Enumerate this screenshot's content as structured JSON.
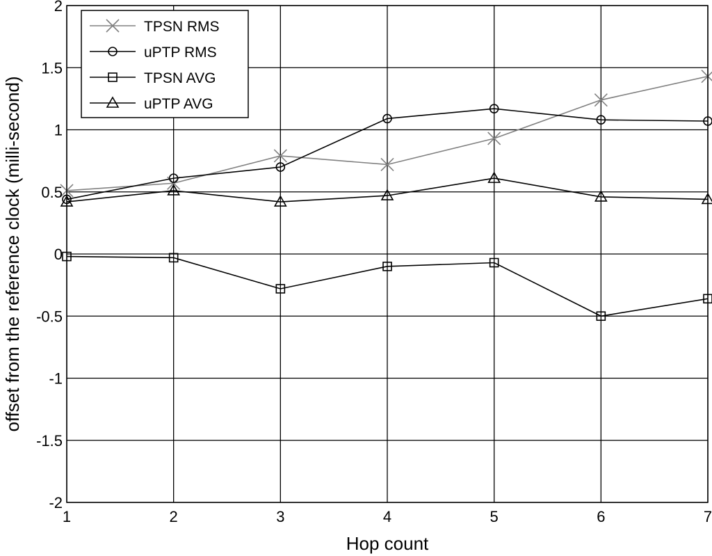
{
  "chart_data": {
    "type": "line",
    "title": "",
    "xlabel": "Hop count",
    "ylabel": "offset from the reference clock (milli-second)",
    "x": [
      1,
      2,
      3,
      4,
      5,
      6,
      7
    ],
    "xlim": [
      1,
      7
    ],
    "ylim": [
      -2,
      2
    ],
    "xticks": [
      "1",
      "2",
      "3",
      "4",
      "5",
      "6",
      "7"
    ],
    "yticks": [
      "-2",
      "-1.5",
      "-1",
      "-0.5",
      "0",
      "0.5",
      "1",
      "1.5",
      "2"
    ],
    "grid": true,
    "legend_position": "top-left",
    "series": [
      {
        "name": "TPSN RMS",
        "marker": "x",
        "color": "#808080",
        "values": [
          0.51,
          0.57,
          0.79,
          0.72,
          0.93,
          1.24,
          1.43
        ]
      },
      {
        "name": "uPTP RMS",
        "marker": "circle",
        "color": "#000000",
        "values": [
          0.44,
          0.61,
          0.7,
          1.09,
          1.17,
          1.08,
          1.07
        ]
      },
      {
        "name": "TPSN AVG",
        "marker": "square",
        "color": "#000000",
        "values": [
          -0.02,
          -0.03,
          -0.28,
          -0.1,
          -0.07,
          -0.5,
          -0.36
        ]
      },
      {
        "name": "uPTP AVG",
        "marker": "triangle",
        "color": "#000000",
        "values": [
          0.42,
          0.51,
          0.42,
          0.47,
          0.61,
          0.46,
          0.44
        ]
      }
    ]
  }
}
